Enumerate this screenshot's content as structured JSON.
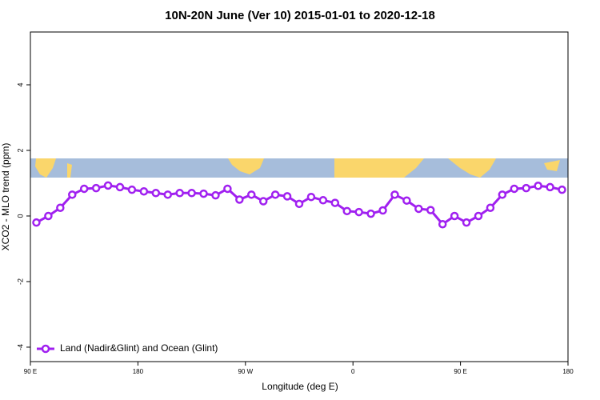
{
  "chart_data": {
    "type": "line",
    "title": "10N-20N June (Ver 10)   2015-01-01 to 2020-12-18",
    "x_label": "Longitude (deg E)",
    "y_label": "XCO2 - MLO trend (ppm)",
    "x": [
      95,
      105,
      115,
      125,
      135,
      145,
      155,
      165,
      175,
      185,
      195,
      205,
      215,
      225,
      235,
      245,
      255,
      265,
      275,
      285,
      295,
      305,
      315,
      325,
      335,
      345,
      355,
      365,
      375,
      385,
      395,
      405,
      415,
      425,
      435,
      445,
      455,
      465,
      475,
      485,
      495,
      505,
      515,
      525,
      535
    ],
    "series": [
      {
        "name": "Land (Nadir&Glint) and Ocean (Glint)",
        "color": "#a020f0",
        "values": [
          -0.2,
          0.0,
          0.25,
          0.65,
          0.83,
          0.85,
          0.93,
          0.88,
          0.8,
          0.75,
          0.7,
          0.65,
          0.7,
          0.7,
          0.68,
          0.63,
          0.83,
          0.5,
          0.65,
          0.45,
          0.65,
          0.6,
          0.37,
          0.58,
          0.48,
          0.4,
          0.15,
          0.12,
          0.07,
          0.17,
          0.65,
          0.47,
          0.22,
          0.18,
          -0.25,
          0.0,
          -0.2,
          0.0,
          0.25,
          0.65,
          0.83,
          0.85,
          0.92,
          0.88,
          0.8
        ]
      }
    ],
    "xlim": [
      90,
      540
    ],
    "xticks": [
      {
        "value": 90,
        "label": "90 E"
      },
      180,
      {
        "value": 270,
        "label": "90 W"
      },
      {
        "value": 360,
        "label": "0"
      },
      {
        "value": 450,
        "label": "90 E"
      },
      {
        "value": 540,
        "label": "180"
      }
    ],
    "ylim": [
      -4.44,
      5.61
    ],
    "yticks": [
      -4,
      -2,
      0,
      2,
      4
    ],
    "legend": "bottom-left"
  }
}
